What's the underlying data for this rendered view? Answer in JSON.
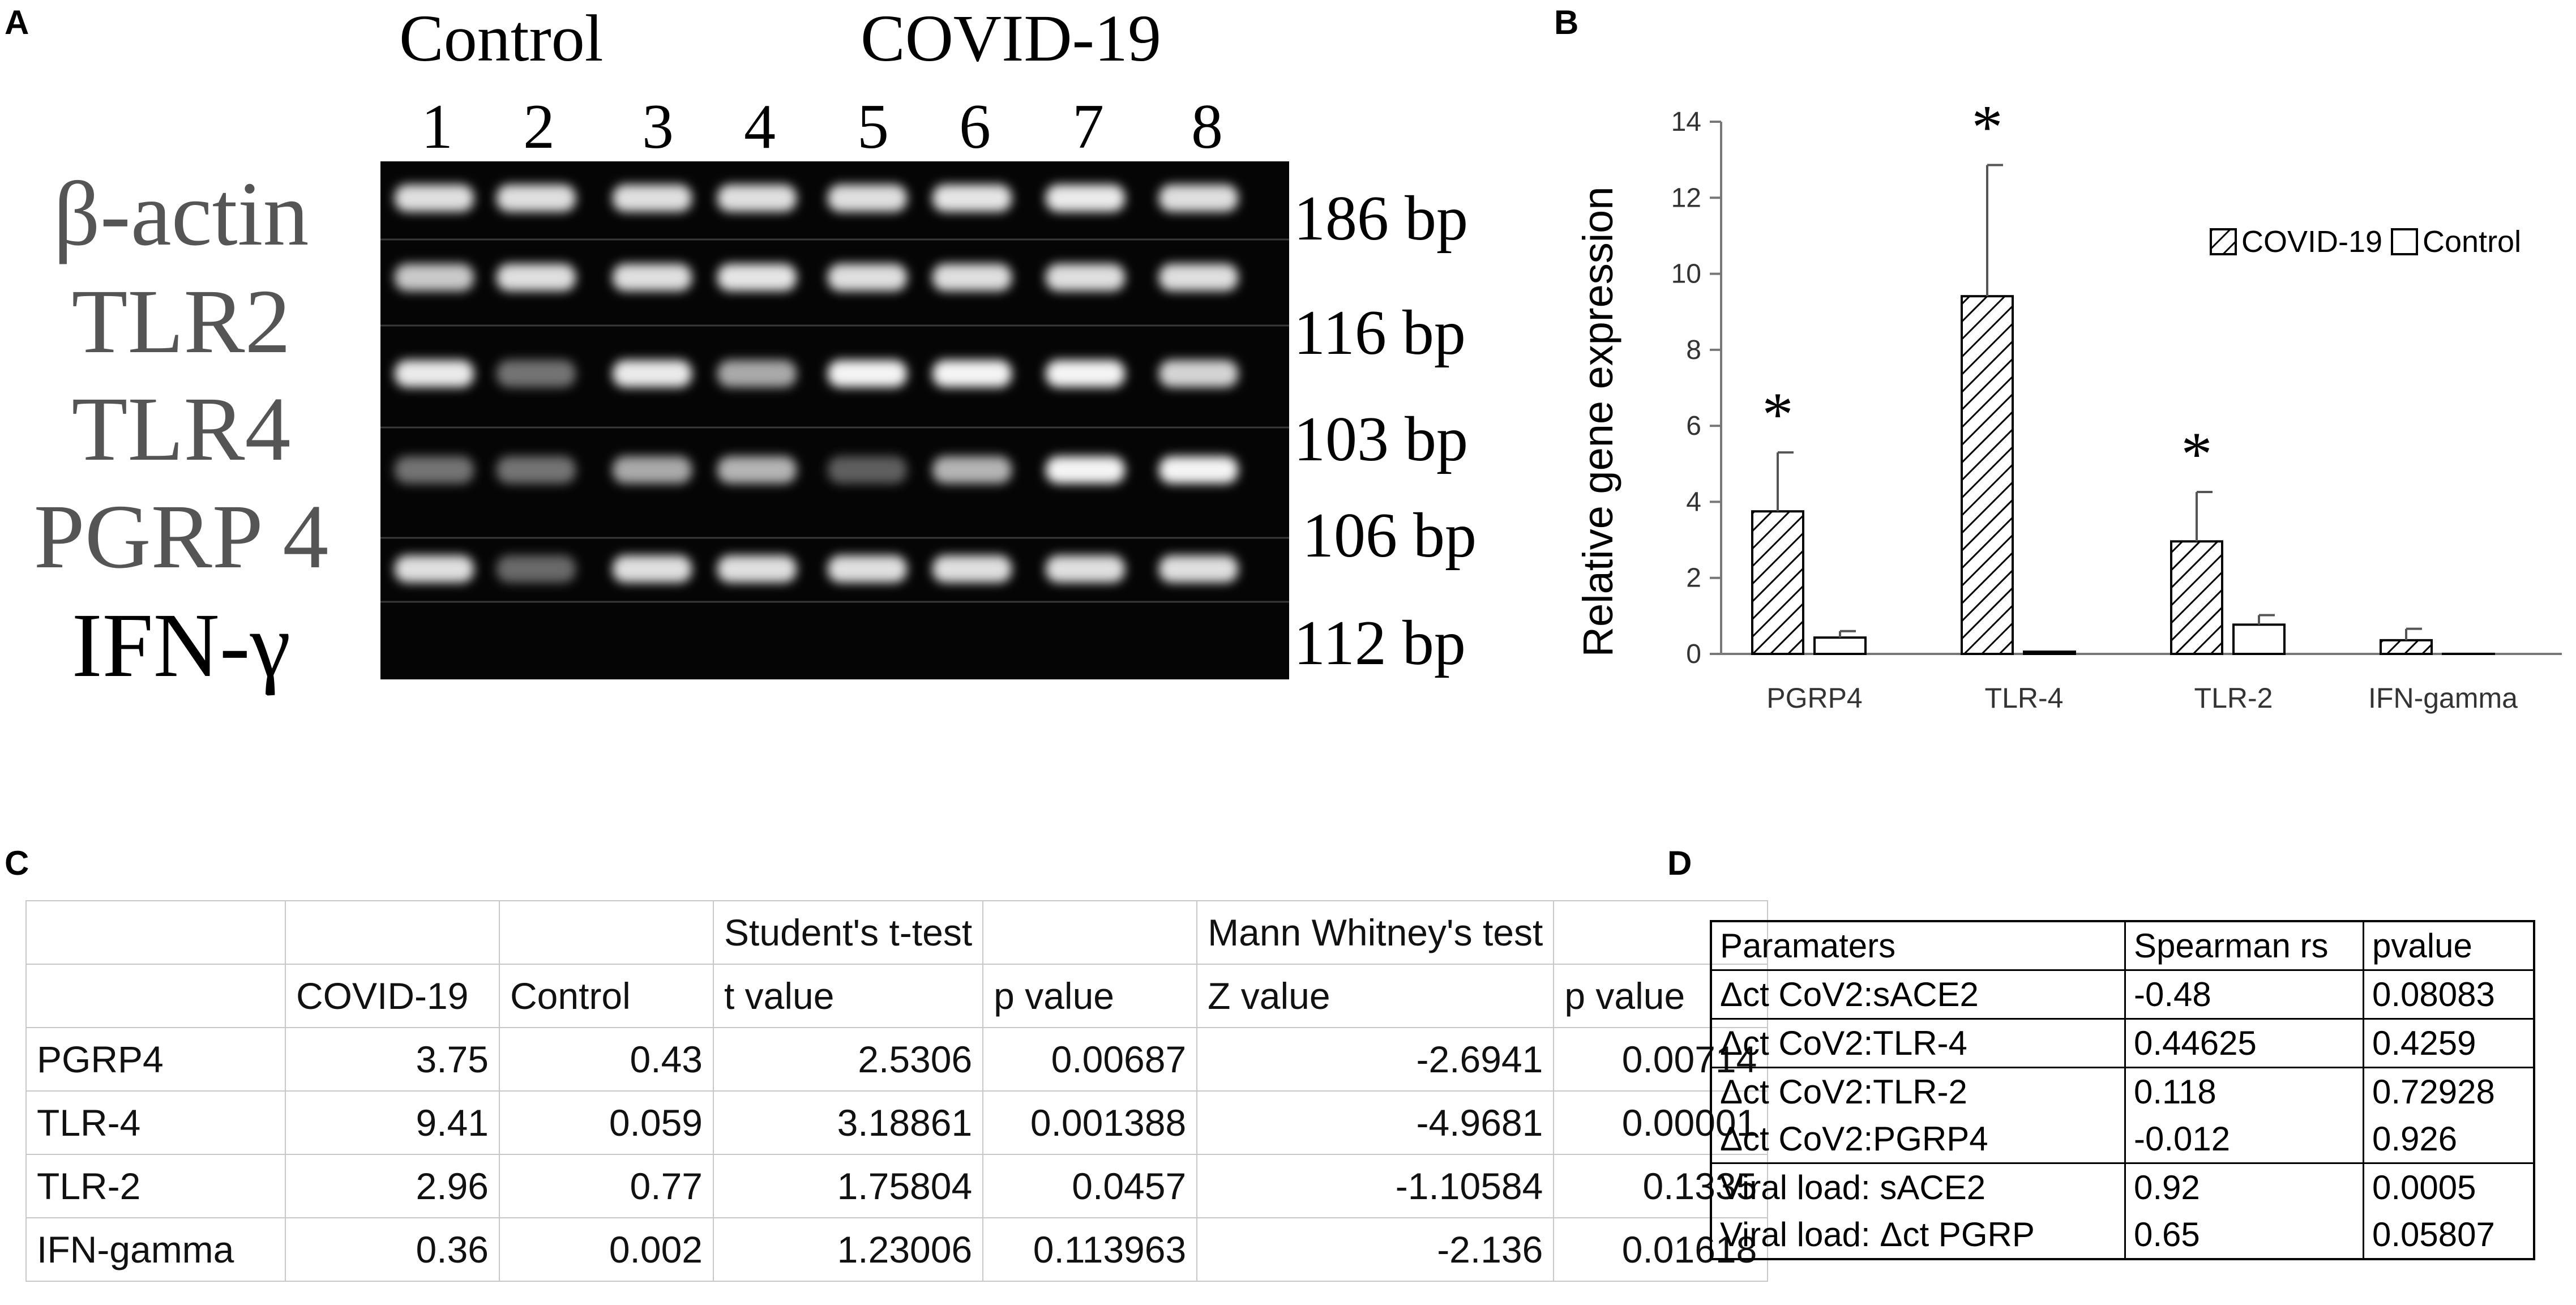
{
  "panels": {
    "a": "A",
    "b": "B",
    "c": "C",
    "d": "D"
  },
  "gel": {
    "group_control": "Control",
    "group_covid": "COVID-19",
    "lanes": [
      "1",
      "2",
      "3",
      "4",
      "5",
      "6",
      "7",
      "8"
    ],
    "genes": [
      {
        "name": "β-actin",
        "size": "186 bp",
        "intensity": [
          0.85,
          0.85,
          0.85,
          0.85,
          0.85,
          0.88,
          0.9,
          0.85
        ]
      },
      {
        "name": "TLR2",
        "size": "116 bp",
        "intensity": [
          0.75,
          0.85,
          0.85,
          0.88,
          0.85,
          0.85,
          0.85,
          0.85
        ]
      },
      {
        "name": "TLR4",
        "size": "103 bp",
        "intensity": [
          0.9,
          0.35,
          0.9,
          0.6,
          0.95,
          0.95,
          0.95,
          0.8
        ]
      },
      {
        "name": "PGRP 4",
        "size": "106 bp",
        "intensity": [
          0.35,
          0.35,
          0.6,
          0.65,
          0.25,
          0.65,
          0.95,
          0.95
        ]
      },
      {
        "name": "IFN-γ",
        "size": "112 bp",
        "intensity": [
          0.85,
          0.3,
          0.85,
          0.85,
          0.85,
          0.85,
          0.85,
          0.85
        ]
      }
    ]
  },
  "chart_data": {
    "type": "bar",
    "categories": [
      "PGRP4",
      "TLR-4",
      "TLR-2",
      "IFN-gamma"
    ],
    "series": [
      {
        "name": "COVID-19",
        "values": [
          3.75,
          9.41,
          2.96,
          0.36
        ],
        "errors": [
          1.55,
          3.45,
          1.3,
          0.3
        ],
        "pattern": "hatched"
      },
      {
        "name": "Control",
        "values": [
          0.43,
          0.059,
          0.77,
          0.002
        ],
        "errors": [
          0.17,
          0.0,
          0.25,
          0.0
        ],
        "pattern": "open"
      }
    ],
    "significance": [
      "*",
      "*",
      "*",
      ""
    ],
    "ylabel": "Relative gene expression",
    "ylim": [
      0,
      14
    ],
    "yticks": [
      "0",
      "2",
      "4",
      "6",
      "8",
      "10",
      "12",
      "14"
    ],
    "legend": "top-right",
    "grid": false
  },
  "table_c": {
    "header_row1": [
      "",
      "",
      "",
      "Student's t-test",
      "",
      "Mann Whitney's test",
      ""
    ],
    "header_row2": [
      "",
      "COVID-19",
      "Control",
      "t value",
      "p value",
      "Z value",
      "p value"
    ],
    "rows": [
      [
        "PGRP4",
        "3.75",
        "0.43",
        "2.5306",
        "0.00687",
        "-2.6941",
        "0.00714"
      ],
      [
        "TLR-4",
        "9.41",
        "0.059",
        "3.18861",
        "0.001388",
        "-4.9681",
        "0.00001"
      ],
      [
        "TLR-2",
        "2.96",
        "0.77",
        "1.75804",
        "0.0457",
        "-1.10584",
        "0.1335"
      ],
      [
        "IFN-gamma",
        "0.36",
        "0.002",
        "1.23006",
        "0.113963",
        "-2.136",
        "0.01618"
      ]
    ]
  },
  "table_d": {
    "header": [
      "Paramaters",
      "Spearman rs",
      "pvalue"
    ],
    "rows": [
      [
        "Δct CoV2:sACE2",
        "-0.48",
        "0.08083"
      ],
      [
        "Δct CoV2:TLR-4",
        "0.44625",
        "0.4259"
      ],
      [
        "Δct CoV2:TLR-2",
        "0.118",
        "0.72928"
      ],
      [
        "Δct CoV2:PGRP4",
        "-0.012",
        "0.926"
      ],
      [
        "Viral load: sACE2",
        "0.92",
        "0.0005"
      ],
      [
        "Viral load: Δct PGRP",
        "0.65",
        "0.05807"
      ]
    ]
  }
}
